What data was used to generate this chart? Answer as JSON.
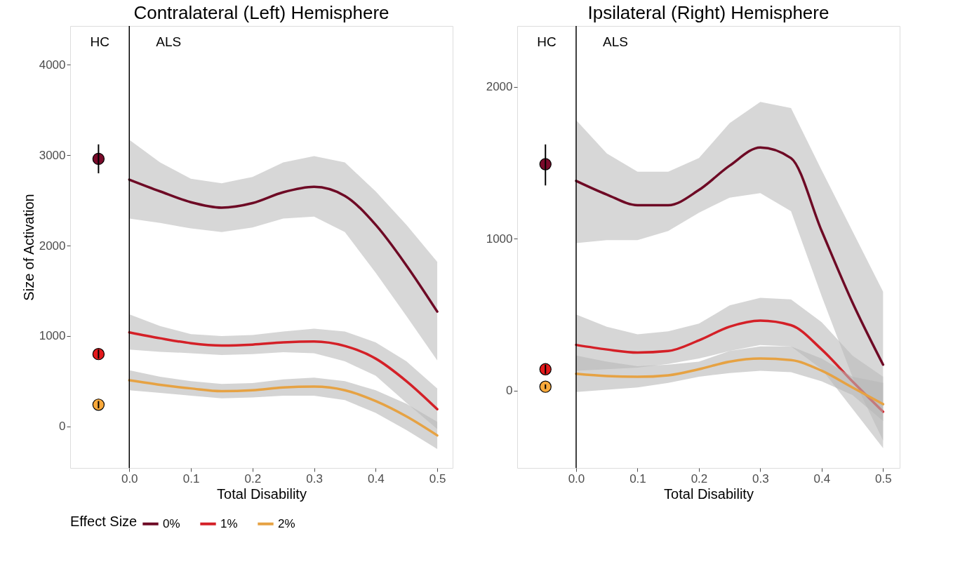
{
  "chart_data": [
    {
      "type": "line",
      "title": "Contralateral (Left) Hemisphere",
      "xlabel": "Total Disability",
      "ylabel": "Size of Activation",
      "legend_title": "Effect Size",
      "legend": "bottom",
      "grid": false,
      "xlim": [
        -0.096,
        0.525
      ],
      "xticks": [
        {
          "value": 0,
          "label": "0.0"
        },
        0.1,
        0.2,
        0.3,
        0.4,
        0.5
      ],
      "ylim": [
        -460,
        4430
      ],
      "yticks": [
        0,
        1000,
        2000,
        3000,
        4000
      ],
      "ref_lines": [
        {
          "axis": "x",
          "value": 0,
          "color": "#000000"
        }
      ],
      "annotations": [
        "HC",
        "ALS"
      ],
      "series": [
        {
          "name": "0%",
          "color": "#6e0a25",
          "x": [
            0,
            0.05,
            0.1,
            0.15,
            0.2,
            0.25,
            0.3,
            0.35,
            0.4,
            0.45,
            0.5
          ],
          "values": [
            2730,
            2600,
            2480,
            2420,
            2470,
            2590,
            2650,
            2550,
            2230,
            1780,
            1270
          ],
          "lower": [
            2300,
            2250,
            2190,
            2150,
            2200,
            2300,
            2320,
            2150,
            1700,
            1220,
            730
          ],
          "upper": [
            3170,
            2920,
            2740,
            2690,
            2760,
            2920,
            2990,
            2920,
            2600,
            2230,
            1820
          ]
        },
        {
          "name": "1%",
          "color": "#d42027",
          "x": [
            0,
            0.05,
            0.1,
            0.15,
            0.2,
            0.25,
            0.3,
            0.35,
            0.4,
            0.45,
            0.5
          ],
          "values": [
            1040,
            975,
            920,
            895,
            905,
            930,
            940,
            890,
            750,
            500,
            190
          ],
          "lower": [
            850,
            825,
            810,
            790,
            800,
            820,
            810,
            720,
            560,
            260,
            -30
          ],
          "upper": [
            1240,
            1110,
            1020,
            1000,
            1010,
            1050,
            1080,
            1050,
            930,
            720,
            420
          ]
        },
        {
          "name": "2%",
          "color": "#e6a243",
          "x": [
            0,
            0.05,
            0.1,
            0.15,
            0.2,
            0.25,
            0.3,
            0.35,
            0.4,
            0.45,
            0.5
          ],
          "values": [
            510,
            460,
            420,
            390,
            400,
            430,
            440,
            400,
            280,
            110,
            -100
          ],
          "lower": [
            400,
            370,
            340,
            310,
            320,
            340,
            340,
            290,
            150,
            -40,
            -250
          ],
          "upper": [
            620,
            550,
            500,
            470,
            480,
            520,
            540,
            500,
            400,
            250,
            50
          ]
        },
        {
          "type": "scatter",
          "marker": "circle",
          "color": "#7a0a2a",
          "x": [
            -0.05
          ],
          "values": [
            2960
          ],
          "errors": [
            [
              2800,
              3120
            ]
          ]
        },
        {
          "type": "scatter",
          "marker": "circle",
          "color": "#e41a1c",
          "x": [
            -0.05
          ],
          "values": [
            800
          ],
          "errors": [
            [
              750,
              850
            ]
          ]
        },
        {
          "type": "scatter",
          "marker": "circle",
          "color": "#f9a93b",
          "x": [
            -0.05
          ],
          "values": [
            240
          ],
          "errors": [
            [
              200,
              280
            ]
          ]
        }
      ]
    },
    {
      "type": "line",
      "title": "Ipsilateral (Right) Hemisphere",
      "xlabel": "Total Disability",
      "grid": false,
      "xlim": [
        -0.096,
        0.527
      ],
      "xticks": [
        {
          "value": 0,
          "label": "0.0"
        },
        0.1,
        0.2,
        0.3,
        0.4,
        0.5
      ],
      "ylim": [
        -510,
        2400
      ],
      "yticks": [
        0,
        1000,
        2000
      ],
      "ref_lines": [
        {
          "axis": "x",
          "value": 0,
          "color": "#000000"
        }
      ],
      "annotations": [
        "HC",
        "ALS"
      ],
      "series": [
        {
          "color": "#6e0a25",
          "x": [
            0,
            0.05,
            0.1,
            0.15,
            0.2,
            0.25,
            0.3,
            0.35,
            0.4,
            0.45,
            0.5
          ],
          "values": [
            1380,
            1290,
            1220,
            1220,
            1320,
            1480,
            1600,
            1530,
            1050,
            580,
            170
          ],
          "lower": [
            970,
            990,
            990,
            1050,
            1170,
            1270,
            1300,
            1180,
            620,
            90,
            -330
          ],
          "upper": [
            1780,
            1560,
            1440,
            1440,
            1530,
            1760,
            1900,
            1860,
            1450,
            1050,
            650
          ]
        },
        {
          "color": "#d42027",
          "x": [
            0,
            0.05,
            0.1,
            0.15,
            0.2,
            0.25,
            0.3,
            0.35,
            0.4,
            0.45,
            0.5
          ],
          "values": [
            300,
            270,
            250,
            260,
            330,
            420,
            460,
            430,
            270,
            60,
            -140
          ],
          "lower": [
            130,
            140,
            150,
            175,
            210,
            260,
            300,
            290,
            140,
            -120,
            -380
          ],
          "upper": [
            500,
            420,
            370,
            390,
            440,
            560,
            610,
            600,
            450,
            230,
            90
          ]
        },
        {
          "color": "#e6a243",
          "x": [
            0,
            0.05,
            0.1,
            0.15,
            0.2,
            0.25,
            0.3,
            0.35,
            0.4,
            0.45,
            0.5
          ],
          "values": [
            110,
            95,
            90,
            100,
            140,
            190,
            210,
            200,
            130,
            20,
            -90
          ],
          "lower": [
            -10,
            5,
            20,
            50,
            90,
            115,
            130,
            120,
            60,
            -30,
            -200
          ],
          "upper": [
            230,
            190,
            160,
            170,
            190,
            260,
            290,
            290,
            210,
            90,
            50
          ]
        },
        {
          "type": "scatter",
          "marker": "circle",
          "color": "#7a0a2a",
          "x": [
            -0.05
          ],
          "values": [
            1490
          ],
          "errors": [
            [
              1350,
              1620
            ]
          ]
        },
        {
          "type": "scatter",
          "marker": "circle",
          "color": "#e41a1c",
          "x": [
            -0.05
          ],
          "values": [
            140
          ],
          "errors": [
            [
              110,
              170
            ]
          ]
        },
        {
          "type": "scatter",
          "marker": "circle",
          "color": "#f9a93b",
          "x": [
            -0.05
          ],
          "values": [
            25
          ],
          "errors": [
            [
              10,
              40
            ]
          ]
        }
      ]
    }
  ]
}
